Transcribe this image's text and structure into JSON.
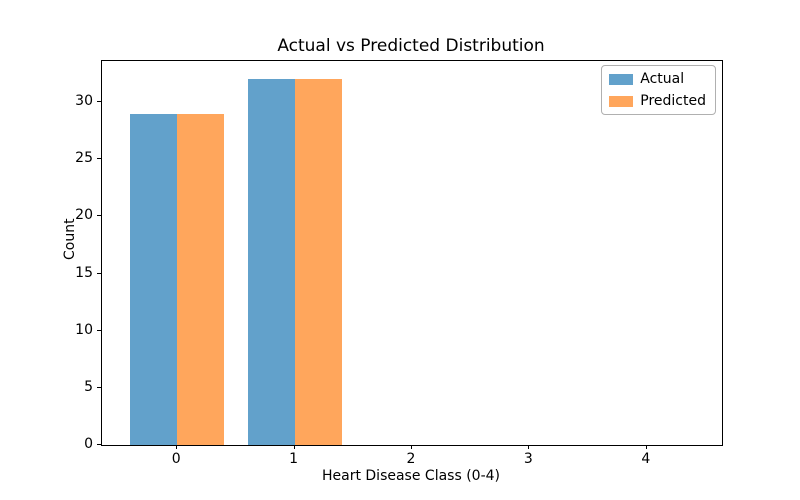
{
  "chart_data": {
    "type": "bar",
    "title": "Actual vs Predicted Distribution",
    "xlabel": "Heart Disease Class (0-4)",
    "ylabel": "Count",
    "categories": [
      "0",
      "1",
      "2",
      "3",
      "4"
    ],
    "category_positions": [
      0,
      1,
      2,
      3,
      4
    ],
    "series": [
      {
        "name": "Actual",
        "color": "#62a1cb",
        "values": [
          29,
          32,
          0,
          0,
          0
        ]
      },
      {
        "name": "Predicted",
        "color": "#ffa65c",
        "values": [
          29,
          32,
          0,
          0,
          0
        ]
      }
    ],
    "bar_width": 0.4,
    "xlim": [
      -0.64,
      4.64
    ],
    "ylim": [
      0,
      33.6
    ],
    "yticks": [
      0,
      5,
      10,
      15,
      20,
      25,
      30
    ],
    "xticks": [
      0,
      1,
      2,
      3,
      4
    ],
    "grid": false,
    "legend_position": "upper right",
    "plot_bg": "#ffffff",
    "spine_color": "#000000"
  }
}
